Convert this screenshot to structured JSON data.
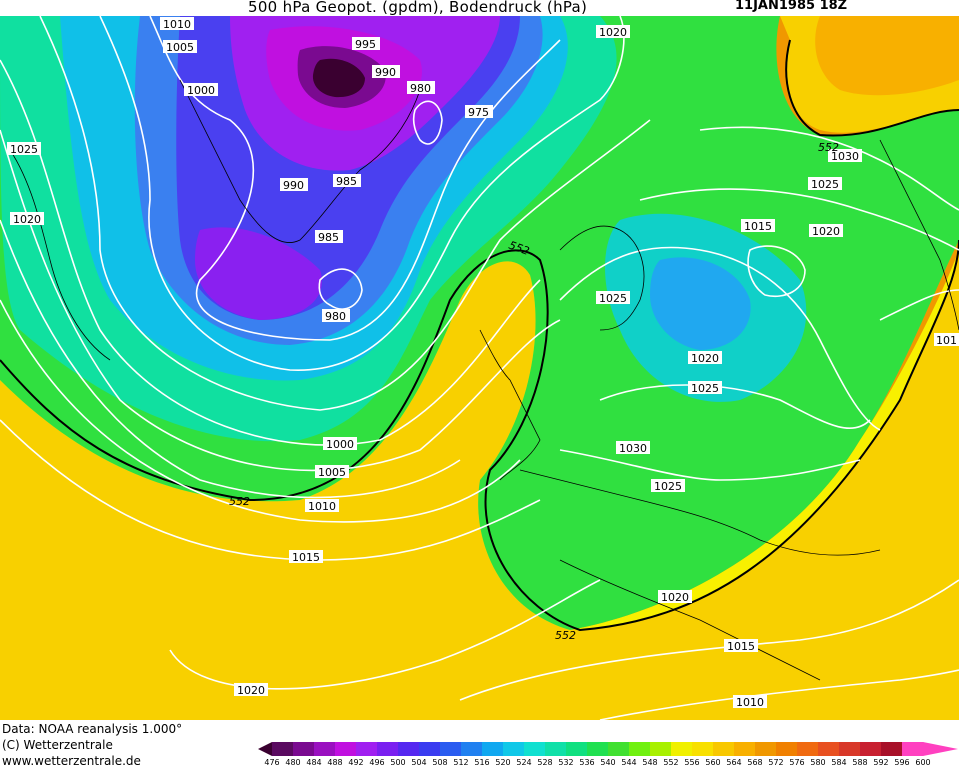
{
  "header": {
    "title": "500 hPa Geopot. (gpdm), Bodendruck (hPa)",
    "datetime": "11JAN1985 18Z"
  },
  "footer": {
    "data_source": "Data: NOAA reanalysis 1.000°",
    "copyright": "(C) Wetterzentrale",
    "website": "www.wetterzentrale.de"
  },
  "map": {
    "geopotential_label": "552",
    "isobar_labels": [
      "1010",
      "1005",
      "1000",
      "995",
      "990",
      "980",
      "975",
      "1020",
      "1025",
      "985",
      "990",
      "980",
      "985",
      "1020",
      "1025",
      "1030",
      "1015",
      "1020",
      "1025",
      "1020",
      "1025",
      "1030",
      "1025",
      "1000",
      "1005",
      "1010",
      "1015",
      "1020",
      "1020",
      "1015",
      "1010",
      "101"
    ]
  },
  "colorbar": {
    "values": [
      "476",
      "480",
      "484",
      "488",
      "492",
      "496",
      "500",
      "504",
      "508",
      "512",
      "516",
      "520",
      "524",
      "528",
      "532",
      "536",
      "540",
      "544",
      "548",
      "552",
      "556",
      "560",
      "564",
      "568",
      "572",
      "576",
      "580",
      "584",
      "588",
      "592",
      "596",
      "600"
    ],
    "colors": [
      "#3a0030",
      "#5a0a60",
      "#7a0a90",
      "#9a10c0",
      "#c010e0",
      "#a020f0",
      "#7a20f0",
      "#5528f0",
      "#3a3cf0",
      "#2a5cf0",
      "#2080f0",
      "#10a8f0",
      "#10c8e8",
      "#10e0d0",
      "#10e0a8",
      "#10e080",
      "#20e050",
      "#40e030",
      "#70f010",
      "#a8f000",
      "#f0f000",
      "#f8e000",
      "#f8c800",
      "#f8b000",
      "#f09800",
      "#f08000",
      "#f06a10",
      "#e85020",
      "#d83828",
      "#c82030",
      "#a81028",
      "#ff40c0"
    ]
  }
}
